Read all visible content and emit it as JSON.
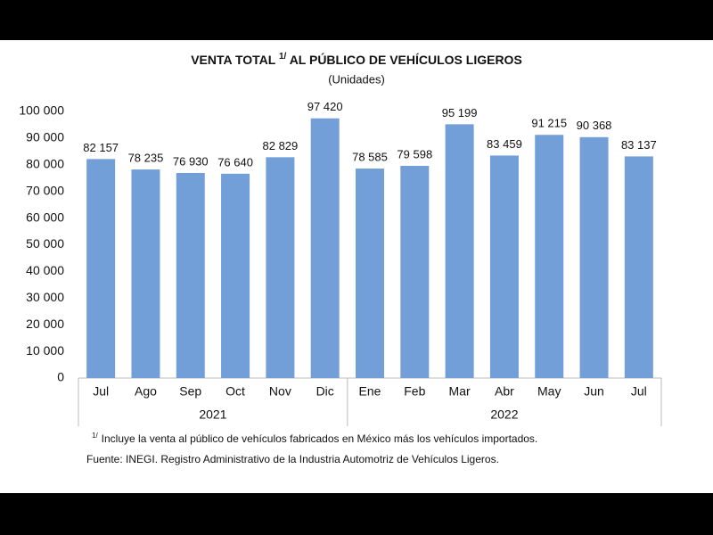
{
  "chart_data": {
    "type": "bar",
    "title": "VENTA TOTAL",
    "title_superscript": "1/",
    "title_rest": "AL PÚBLICO DE VEHÍCULOS LIGEROS",
    "subtitle": "(Unidades)",
    "groups": [
      {
        "name": "2021",
        "categories": [
          "Jul",
          "Ago",
          "Sep",
          "Oct",
          "Nov",
          "Dic"
        ]
      },
      {
        "name": "2022",
        "categories": [
          "Ene",
          "Feb",
          "Mar",
          "Abr",
          "May",
          "Jun",
          "Jul"
        ]
      }
    ],
    "values": [
      82157,
      78235,
      76930,
      76640,
      82829,
      97420,
      78585,
      79598,
      95199,
      83459,
      91215,
      90368,
      83137
    ],
    "value_labels": [
      "82 157",
      "78 235",
      "76 930",
      "76 640",
      "82 829",
      "97 420",
      "78 585",
      "79 598",
      "95 199",
      "83 459",
      "91 215",
      "90 368",
      "83 137"
    ],
    "color": "#729fd8",
    "ylim": [
      0,
      100000
    ],
    "yticks": [
      0,
      {
        "value": 10000,
        "label": "10 000"
      },
      {
        "value": 20000,
        "label": "20 000"
      },
      {
        "value": 30000,
        "label": "30 000"
      },
      {
        "value": 40000,
        "label": "40 000"
      },
      {
        "value": 50000,
        "label": "50 000"
      },
      {
        "value": 60000,
        "label": "60 000"
      },
      {
        "value": 70000,
        "label": "70 000"
      },
      {
        "value": 80000,
        "label": "80 000"
      },
      {
        "value": 90000,
        "label": "90 000"
      },
      {
        "value": 100000,
        "label": "100 000"
      }
    ],
    "grid": false,
    "footnote_marker": "1/",
    "footnote": "Incluye la venta al público de vehículos fabricados en México más los vehículos importados.",
    "source": "Fuente: INEGI. Registro Administrativo de la Industria Automotriz de Vehículos Ligeros."
  }
}
